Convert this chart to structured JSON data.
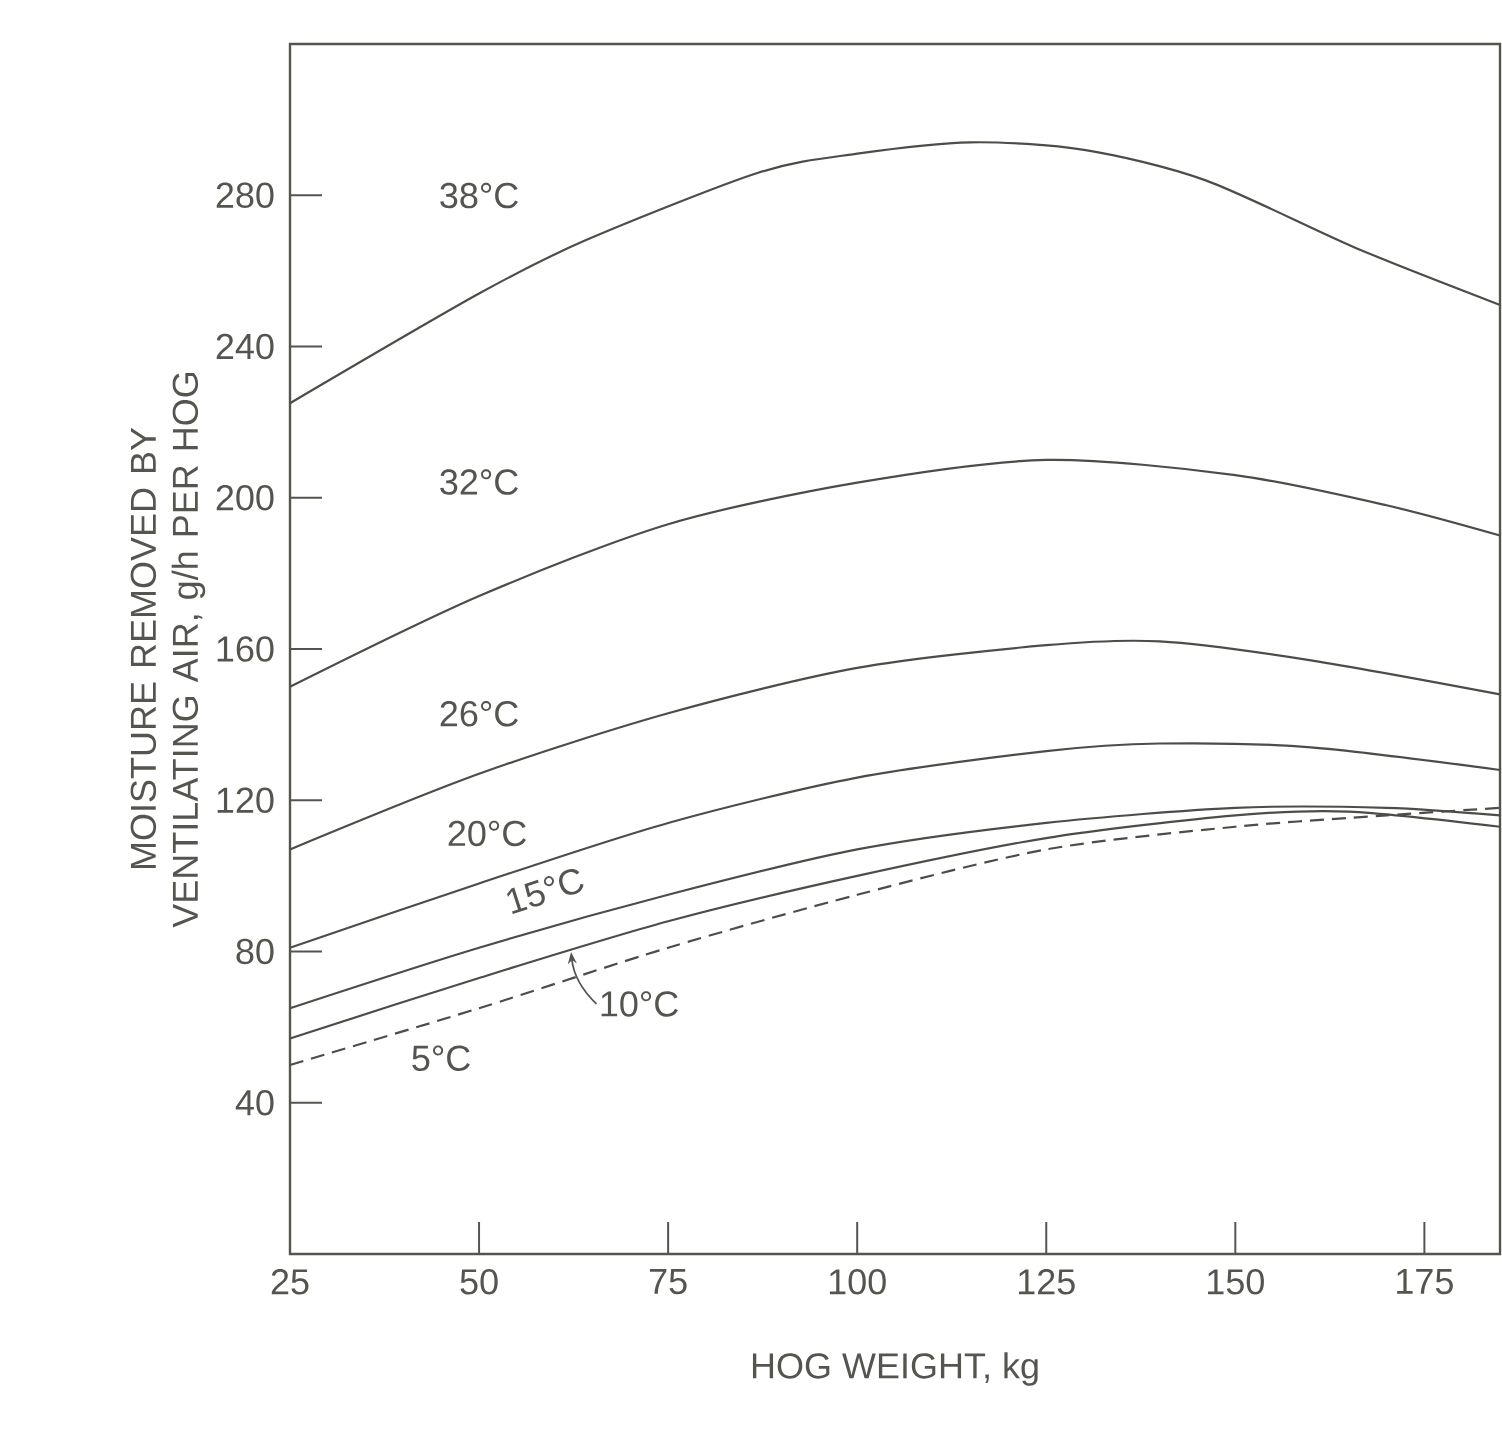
{
  "chart_data": {
    "type": "line",
    "xlabel": "HOG WEIGHT, kg",
    "ylabel": "MOISTURE REMOVED BY VENTILATING AIR, g/h PER HOG",
    "xlim": [
      25,
      185
    ],
    "ylim": [
      0,
      320
    ],
    "xticks": [
      25,
      50,
      75,
      100,
      125,
      150,
      175
    ],
    "yticks": [
      40,
      80,
      120,
      160,
      200,
      240,
      280
    ],
    "grid": false,
    "marker": "none",
    "series": [
      {
        "name": "38°C",
        "color": "#4d4d48",
        "line_style": "solid",
        "x": [
          25,
          50,
          64,
          87,
          100,
          115,
          130,
          146,
          166,
          185
        ],
        "values": [
          225,
          254,
          268,
          286,
          291,
          294,
          292,
          284,
          266,
          251
        ]
      },
      {
        "name": "32°C",
        "color": "#4d4d48",
        "line_style": "solid",
        "x": [
          25,
          50,
          75,
          100,
          125,
          150,
          170,
          185
        ],
        "values": [
          150,
          174,
          193,
          204,
          210,
          206,
          198,
          190
        ]
      },
      {
        "name": "26°C",
        "color": "#4d4d48",
        "line_style": "solid",
        "x": [
          25,
          50,
          75,
          100,
          125,
          140,
          160,
          185
        ],
        "values": [
          107,
          127,
          143,
          155,
          161,
          162,
          157,
          148
        ]
      },
      {
        "name": "20°C",
        "color": "#4d4d48",
        "line_style": "solid",
        "x": [
          25,
          50,
          75,
          100,
          125,
          140,
          160,
          185
        ],
        "values": [
          81,
          98,
          114,
          126,
          133,
          135,
          134,
          128
        ]
      },
      {
        "name": "15°C",
        "color": "#4d4d48",
        "line_style": "solid",
        "x": [
          25,
          50,
          75,
          100,
          125,
          150,
          170,
          185
        ],
        "values": [
          65,
          81,
          95,
          107,
          114,
          118,
          118,
          116
        ]
      },
      {
        "name": "10°C",
        "color": "#4d4d48",
        "line_style": "solid",
        "x": [
          25,
          50,
          75,
          100,
          125,
          150,
          165,
          185
        ],
        "values": [
          57,
          73,
          88,
          100,
          110,
          116,
          117,
          113
        ]
      },
      {
        "name": "5°C",
        "color": "#4d4d48",
        "line_style": "dashed",
        "x": [
          25,
          50,
          75,
          100,
          125,
          150,
          170,
          185
        ],
        "values": [
          50,
          65,
          81,
          95,
          107,
          113,
          116,
          118
        ]
      }
    ]
  }
}
